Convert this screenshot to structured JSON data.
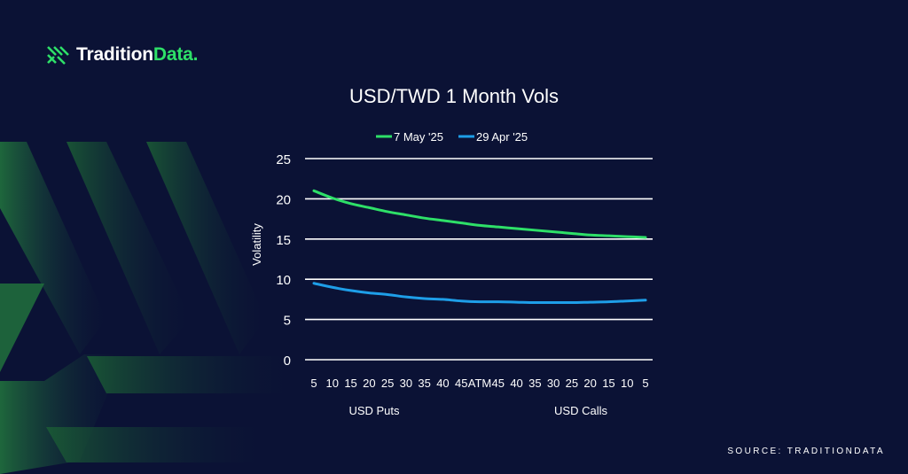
{
  "brand": {
    "name_part1": "Tradition",
    "name_part2": "Data.",
    "accent_color": "#2ee068",
    "logo_icon": "tradition-stripes-icon"
  },
  "source": "SOURCE: TRADITIONDATA",
  "chart_data": {
    "type": "line",
    "title": "USD/TWD 1 Month Vols",
    "ylabel": "Volatility",
    "xlabel": "",
    "group_labels": [
      "USD Puts",
      "USD Calls"
    ],
    "categories": [
      "5",
      "10",
      "15",
      "20",
      "25",
      "30",
      "35",
      "40",
      "45",
      "ATM",
      "45",
      "40",
      "35",
      "30",
      "25",
      "20",
      "15",
      "10",
      "5"
    ],
    "ylim": [
      0,
      25
    ],
    "yticks": [
      0,
      5,
      10,
      15,
      20,
      25
    ],
    "grid": true,
    "legend_position": "top-center",
    "series": [
      {
        "name": "7 May '25",
        "color": "#2ee068",
        "values": [
          21.0,
          20.1,
          19.4,
          18.9,
          18.4,
          18.0,
          17.6,
          17.3,
          17.0,
          16.7,
          16.5,
          16.3,
          16.1,
          15.9,
          15.7,
          15.5,
          15.4,
          15.3,
          15.2
        ]
      },
      {
        "name": "29 Apr '25",
        "color": "#1e9ee8",
        "values": [
          9.5,
          9.0,
          8.6,
          8.3,
          8.1,
          7.8,
          7.6,
          7.5,
          7.3,
          7.2,
          7.2,
          7.15,
          7.1,
          7.1,
          7.1,
          7.15,
          7.2,
          7.3,
          7.4
        ]
      }
    ]
  }
}
